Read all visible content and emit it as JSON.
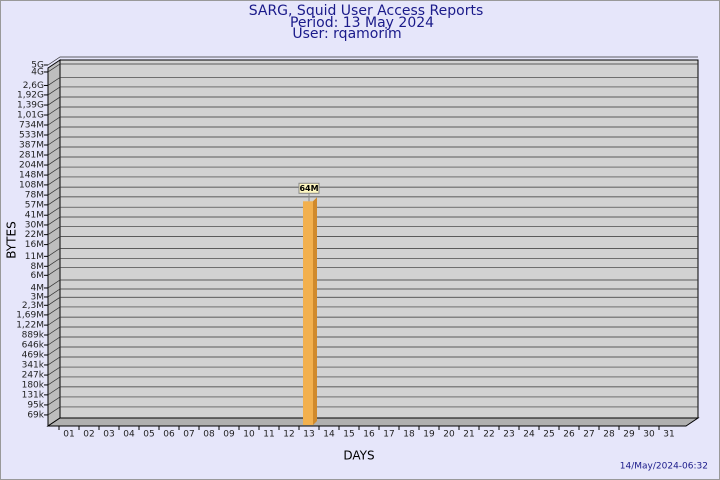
{
  "chart_data": {
    "type": "bar",
    "title": "SARG, Squid User Access Reports",
    "subtitle": "Period: 13 May 2024",
    "user": "User: rqamorim",
    "x_label": "DAYS",
    "y_label": "BYTES",
    "footer": "14/May/2024-06:32",
    "yscale": "log",
    "grid": true,
    "color": "#f2b04e",
    "categories": [
      "01",
      "02",
      "03",
      "04",
      "05",
      "06",
      "07",
      "08",
      "09",
      "10",
      "11",
      "12",
      "13",
      "14",
      "15",
      "16",
      "17",
      "18",
      "19",
      "20",
      "21",
      "22",
      "23",
      "24",
      "25",
      "26",
      "27",
      "28",
      "29",
      "30",
      "31"
    ],
    "values": [
      null,
      null,
      null,
      null,
      null,
      null,
      null,
      null,
      null,
      null,
      null,
      null,
      64000000,
      null,
      null,
      null,
      null,
      null,
      null,
      null,
      null,
      null,
      null,
      null,
      null,
      null,
      null,
      null,
      null,
      null,
      null
    ],
    "value_labels": [
      null,
      null,
      null,
      null,
      null,
      null,
      null,
      null,
      null,
      null,
      null,
      null,
      "64M",
      null,
      null,
      null,
      null,
      null,
      null,
      null,
      null,
      null,
      null,
      null,
      null,
      null,
      null,
      null,
      null,
      null,
      null
    ],
    "ylim": [
      50000,
      5000000000
    ],
    "yticks": [
      {
        "value": 69000,
        "label": "69k"
      },
      {
        "value": 95000,
        "label": "95k"
      },
      {
        "value": 131000,
        "label": "131k"
      },
      {
        "value": 180000,
        "label": "180k"
      },
      {
        "value": 247000,
        "label": "247k"
      },
      {
        "value": 341000,
        "label": "341k"
      },
      {
        "value": 469000,
        "label": "469k"
      },
      {
        "value": 646000,
        "label": "646k"
      },
      {
        "value": 889000,
        "label": "889k"
      },
      {
        "value": 1220000,
        "label": "1,22M"
      },
      {
        "value": 1690000,
        "label": "1,69M"
      },
      {
        "value": 2300000,
        "label": "2,3M"
      },
      {
        "value": 3000000,
        "label": "3M"
      },
      {
        "value": 4000000,
        "label": "4M"
      },
      {
        "value": 6000000,
        "label": "6M"
      },
      {
        "value": 8000000,
        "label": "8M"
      },
      {
        "value": 11000000,
        "label": "11M"
      },
      {
        "value": 16000000,
        "label": "16M"
      },
      {
        "value": 22000000,
        "label": "22M"
      },
      {
        "value": 30000000,
        "label": "30M"
      },
      {
        "value": 41000000,
        "label": "41M"
      },
      {
        "value": 57000000,
        "label": "57M"
      },
      {
        "value": 78000000,
        "label": "78M"
      },
      {
        "value": 108000000,
        "label": "108M"
      },
      {
        "value": 148000000,
        "label": "148M"
      },
      {
        "value": 204000000,
        "label": "204M"
      },
      {
        "value": 281000000,
        "label": "281M"
      },
      {
        "value": 387000000,
        "label": "387M"
      },
      {
        "value": 533000000,
        "label": "533M"
      },
      {
        "value": 734000000,
        "label": "734M"
      },
      {
        "value": 1010000000,
        "label": "1,01G"
      },
      {
        "value": 1390000000,
        "label": "1,39G"
      },
      {
        "value": 1920000000,
        "label": "1,92G"
      },
      {
        "value": 2600000000,
        "label": "2,6G"
      },
      {
        "value": 4000000000,
        "label": "4G"
      },
      {
        "value": 5000000000,
        "label": "5G"
      }
    ]
  }
}
